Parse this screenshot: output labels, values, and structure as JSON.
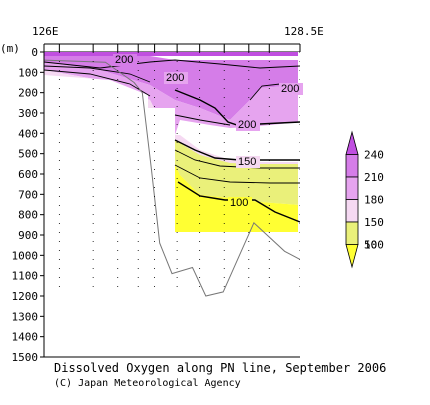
{
  "chart_data": {
    "type": "contour",
    "title": "Dissolved Oxygen along PN line, September 2006",
    "credit": "(C) Japan Meteorological Agency",
    "x_axis": {
      "tick_labels": [
        "126E",
        "128.5E"
      ],
      "range": [
        126.0,
        128.5
      ]
    },
    "y_axis": {
      "unit_label": "(m)",
      "range": [
        0,
        1500
      ],
      "reversed": true,
      "ticks": [
        0,
        100,
        200,
        300,
        400,
        500,
        600,
        700,
        800,
        900,
        1000,
        1100,
        1200,
        1300,
        1400,
        1500
      ]
    },
    "contour_labels": [
      100,
      150,
      200,
      200,
      200,
      200
    ],
    "colorbar": {
      "levels": [
        50,
        100,
        150,
        180,
        210,
        240
      ],
      "colors": [
        "#ffff33",
        "#eaf07a",
        "#f5d9f2",
        "#e6a4ef",
        "#d57de8",
        "#c04fe0"
      ]
    },
    "bottom_profile": [
      {
        "lon": 126.0,
        "depth": 40
      },
      {
        "lon": 126.6,
        "depth": 50
      },
      {
        "lon": 126.88,
        "depth": 150
      },
      {
        "lon": 126.96,
        "depth": 200
      },
      {
        "lon": 127.05,
        "depth": 580
      },
      {
        "lon": 127.13,
        "depth": 940
      },
      {
        "lon": 127.25,
        "depth": 1090
      },
      {
        "lon": 127.45,
        "depth": 1060
      },
      {
        "lon": 127.58,
        "depth": 1200
      },
      {
        "lon": 127.75,
        "depth": 1180
      },
      {
        "lon": 128.05,
        "depth": 840
      },
      {
        "lon": 128.35,
        "depth": 980
      },
      {
        "lon": 128.5,
        "depth": 1020
      }
    ],
    "stations_lon": [
      126.15,
      126.48,
      126.72,
      126.92,
      127.08,
      127.3,
      127.52,
      127.76,
      128.0,
      128.2,
      128.5
    ]
  }
}
